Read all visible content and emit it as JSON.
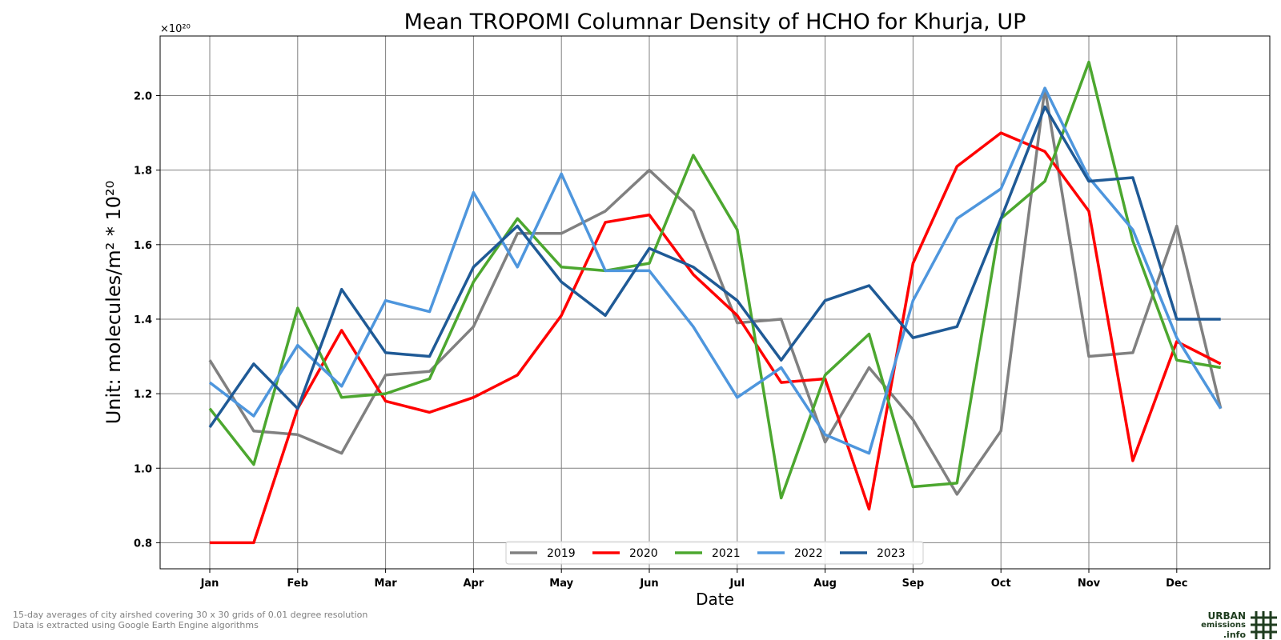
{
  "chart_data": {
    "type": "line",
    "title": "Mean TROPOMI Columnar Density of HCHO for Khurja, UP",
    "xlabel": "Date",
    "ylabel": "Unit: molecules/m² * 10²⁰",
    "y_multiplier_label": "×10²⁰",
    "x_categories": [
      "Jan",
      "",
      "Feb",
      "",
      "Mar",
      "",
      "Apr",
      "",
      "May",
      "",
      "Jun",
      "",
      "Jul",
      "",
      "Aug",
      "",
      "Sep",
      "",
      "Oct",
      "",
      "Nov",
      "",
      "Dec",
      ""
    ],
    "x_tick_labels": [
      "Jan",
      "Feb",
      "Mar",
      "Apr",
      "May",
      "Jun",
      "Jul",
      "Aug",
      "Sep",
      "Oct",
      "Nov",
      "Dec"
    ],
    "ylim": [
      0.73,
      2.16
    ],
    "y_ticks": [
      "0.8",
      "1.0",
      "1.2",
      "1.4",
      "1.6",
      "1.8",
      "2.0"
    ],
    "grid": true,
    "legend_position": "bottom-center",
    "series": [
      {
        "name": "2019",
        "color": "#808080",
        "values": [
          1.29,
          1.1,
          1.09,
          1.04,
          1.25,
          1.26,
          1.38,
          1.63,
          1.63,
          1.69,
          1.8,
          1.69,
          1.39,
          1.4,
          1.07,
          1.27,
          1.13,
          0.93,
          1.1,
          2.02,
          1.3,
          1.31,
          1.65,
          1.16
        ]
      },
      {
        "name": "2020",
        "color": "#ff0000",
        "values": [
          0.8,
          0.8,
          1.16,
          1.37,
          1.18,
          1.15,
          1.19,
          1.25,
          1.41,
          1.66,
          1.68,
          1.52,
          1.41,
          1.23,
          1.24,
          0.89,
          1.55,
          1.81,
          1.9,
          1.85,
          1.69,
          1.02,
          1.34,
          1.28
        ]
      },
      {
        "name": "2021",
        "color": "#4ca72f",
        "values": [
          1.16,
          1.01,
          1.43,
          1.19,
          1.2,
          1.24,
          1.5,
          1.67,
          1.54,
          1.53,
          1.55,
          1.84,
          1.64,
          0.92,
          1.25,
          1.36,
          0.95,
          0.96,
          1.67,
          1.77,
          2.09,
          1.61,
          1.29,
          1.27
        ]
      },
      {
        "name": "2022",
        "color": "#4e96dd",
        "values": [
          1.23,
          1.14,
          1.33,
          1.22,
          1.45,
          1.42,
          1.74,
          1.54,
          1.79,
          1.53,
          1.53,
          1.38,
          1.19,
          1.27,
          1.09,
          1.04,
          1.45,
          1.67,
          1.75,
          2.02,
          1.78,
          1.64,
          1.35,
          1.16
        ]
      },
      {
        "name": "2023",
        "color": "#1f5a96",
        "values": [
          1.11,
          1.28,
          1.16,
          1.48,
          1.31,
          1.3,
          1.54,
          1.65,
          1.5,
          1.41,
          1.59,
          1.54,
          1.45,
          1.29,
          1.45,
          1.49,
          1.35,
          1.38,
          1.67,
          1.97,
          1.77,
          1.78,
          1.4,
          1.4
        ]
      }
    ]
  },
  "footnote": {
    "line1": "15-day averages of city airshed covering 30 x 30 grids of 0.01 degree resolution",
    "line2": "Data is extracted using Google Earth Engine algorithms"
  },
  "logo": {
    "line1": "URBAN",
    "line2": "emissions",
    "line3": ".info",
    "color": "#1f3d1f"
  }
}
